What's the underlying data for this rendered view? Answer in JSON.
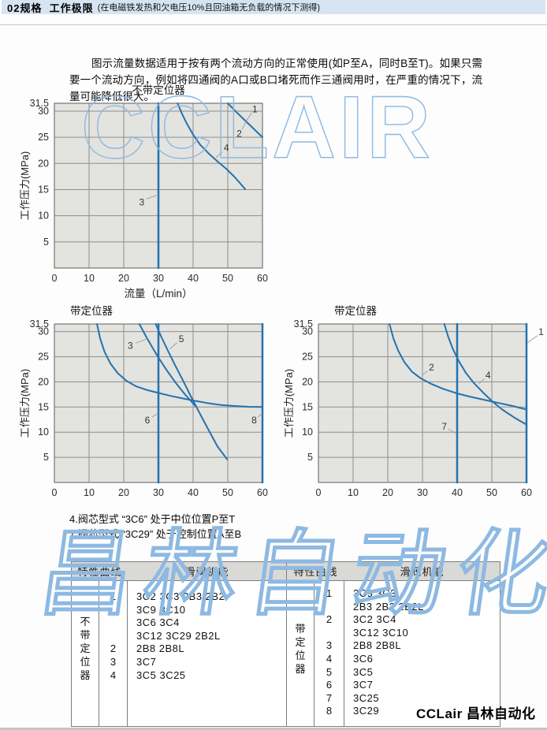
{
  "page": {
    "header": {
      "title": "02规格  工作极限",
      "subtitle": "(在电磁铁发热和欠电压10%且回油箱无负载的情况下测得)"
    },
    "intro": "图示流量数据适用于按有两个流动方向的正常使用(如P至A，同时B至T)。如果只需要一个流动方向，例如将四通阀的A口或B口堵死而作三通阀用时，在严重的情况下，流量可能降低很大。",
    "notes": [
      "4.阀芯型式 “3C6” 处于中位位置P至T",
      "7.阀芯型式 “3C29” 处于控制位置A至B"
    ],
    "watermark_top": "CCLAIR",
    "watermark_bottom": "昌林自动化",
    "brand": "CCLair 昌林自动化",
    "colors": {
      "curve": "#2472ae",
      "plot_bg": "#e3e3df",
      "grid": "#8e8e8e",
      "plot_border": "#767676",
      "watermark": "#8db9e2",
      "header_bar": "#d6e4f2",
      "table_header_bg": "#d9d9d6"
    }
  },
  "chart_data": [
    {
      "type": "line",
      "title": "不带定位器",
      "xlabel": "流量（L/min）",
      "ylabel": "工作压力(MPa)",
      "xlim": [
        0,
        60
      ],
      "ylim": [
        0,
        31.5
      ],
      "xticks": [
        0,
        10,
        20,
        30,
        40,
        50,
        60
      ],
      "yticks": [
        5,
        10,
        15,
        20,
        25,
        30,
        31.5
      ],
      "grid": true,
      "title_align": "center",
      "curves": [
        {
          "name": "curve-1-2",
          "points": [
            [
              50,
              31.5
            ],
            [
              52.5,
              29.8
            ],
            [
              55,
              28.2
            ],
            [
              57.5,
              26.6
            ],
            [
              60,
              25
            ]
          ]
        },
        {
          "name": "curve-4",
          "points": [
            [
              35.5,
              31.5
            ],
            [
              36.8,
              29.5
            ],
            [
              38.2,
              27.6
            ],
            [
              40,
              25.5
            ],
            [
              42,
              23.6
            ],
            [
              44.5,
              21.9
            ],
            [
              47,
              20.4
            ],
            [
              49.5,
              19.0
            ],
            [
              52,
              17.4
            ],
            [
              55,
              15.1
            ]
          ]
        },
        {
          "name": "curve-3",
          "points": [
            [
              30,
              0
            ],
            [
              30,
              31.5
            ]
          ]
        }
      ],
      "labels": [
        {
          "text": "1",
          "x": 57.8,
          "y": 30.4,
          "leader": [
            [
              56.9,
              29.7
            ],
            [
              55.3,
              28.1
            ]
          ]
        },
        {
          "text": "2",
          "x": 53.3,
          "y": 25.7,
          "leader": [
            [
              54.1,
              26.5
            ],
            [
              55.3,
              28.1
            ]
          ]
        },
        {
          "text": "4",
          "x": 49.6,
          "y": 23.0,
          "leader": [
            [
              48.4,
              22.2
            ],
            [
              46.6,
              21.1
            ]
          ]
        },
        {
          "text": "3",
          "x": 25.2,
          "y": 12.6,
          "leader": [
            [
              26.5,
              13.2
            ],
            [
              29.5,
              13.9
            ]
          ]
        }
      ]
    },
    {
      "type": "line",
      "title": "带定位器",
      "xlabel": "",
      "ylabel": "工作压力(MPa)",
      "xlim": [
        0,
        60
      ],
      "ylim": [
        0,
        31.5
      ],
      "xticks": [
        0,
        10,
        20,
        30,
        40,
        50,
        60
      ],
      "yticks": [
        5,
        10,
        15,
        20,
        25,
        30,
        31.5
      ],
      "grid": true,
      "title_align": "left",
      "curves": [
        {
          "name": "curve-limit",
          "points": [
            [
              12.3,
              31.5
            ],
            [
              13.2,
              28.6
            ],
            [
              14.5,
              25.9
            ],
            [
              16.2,
              23.6
            ],
            [
              18.3,
              21.7
            ],
            [
              20.8,
              20.2
            ],
            [
              23.6,
              19.1
            ],
            [
              26.6,
              18.4
            ],
            [
              30,
              17.8
            ],
            [
              33.5,
              17.2
            ],
            [
              37,
              16.7
            ],
            [
              40,
              16.3
            ],
            [
              44,
              15.8
            ],
            [
              48,
              15.4
            ],
            [
              52,
              15.2
            ],
            [
              56,
              15.05
            ],
            [
              60,
              15
            ]
          ]
        },
        {
          "name": "curve-3",
          "points": [
            [
              24.5,
              31.5
            ],
            [
              26.3,
              29.2
            ],
            [
              28.2,
              26.9
            ],
            [
              30.2,
              24.6
            ],
            [
              32.5,
              22.2
            ],
            [
              35,
              19.8
            ],
            [
              37.8,
              17.4
            ],
            [
              40.8,
              15.1
            ]
          ]
        },
        {
          "name": "curve-5",
          "points": [
            [
              29.2,
              31.5
            ],
            [
              30.8,
              29.0
            ],
            [
              32.6,
              26.4
            ],
            [
              34.6,
              23.6
            ],
            [
              36.9,
              20.5
            ],
            [
              39.3,
              17.2
            ],
            [
              41.8,
              13.9
            ],
            [
              44.4,
              10.5
            ],
            [
              47,
              7.2
            ],
            [
              49.8,
              4.6
            ]
          ]
        },
        {
          "name": "curve-6",
          "points": [
            [
              30,
              0
            ],
            [
              30,
              31.5
            ]
          ]
        },
        {
          "name": "curve-8",
          "points": [
            [
              60,
              0
            ],
            [
              60,
              31.5
            ]
          ]
        }
      ],
      "labels": [
        {
          "text": "3",
          "x": 21.9,
          "y": 27.2,
          "leader": [
            [
              23.4,
              27.7
            ],
            [
              26.9,
              28.6
            ]
          ]
        },
        {
          "text": "5",
          "x": 36.6,
          "y": 28.5,
          "leader": [
            [
              35.4,
              27.8
            ],
            [
              33.2,
              26.5
            ]
          ]
        },
        {
          "text": "6",
          "x": 26.8,
          "y": 12.4,
          "leader": [
            [
              28.1,
              13.0
            ],
            [
              29.6,
              13.6
            ]
          ]
        },
        {
          "text": "8",
          "x": 57.6,
          "y": 12.4,
          "leader": [
            [
              58.7,
              13.0
            ],
            [
              59.7,
              13.6
            ]
          ]
        }
      ]
    },
    {
      "type": "line",
      "title": "带定位器",
      "xlabel": "",
      "ylabel": "工作压力(MPa)",
      "xlim": [
        0,
        60
      ],
      "ylim": [
        0,
        31.5
      ],
      "xticks": [
        0,
        10,
        20,
        30,
        40,
        50,
        60
      ],
      "yticks": [
        5,
        10,
        15,
        20,
        25,
        30,
        31.5
      ],
      "grid": true,
      "title_align": "left",
      "curves": [
        {
          "name": "curve-2",
          "points": [
            [
              20.5,
              31.5
            ],
            [
              21.6,
              28.7
            ],
            [
              23,
              26.2
            ],
            [
              24.8,
              23.9
            ],
            [
              27,
              22.0
            ],
            [
              29.5,
              20.7
            ],
            [
              32.5,
              19.6
            ],
            [
              36,
              18.6
            ],
            [
              40,
              17.7
            ],
            [
              44,
              17.0
            ],
            [
              48,
              16.4
            ],
            [
              52,
              15.8
            ],
            [
              56,
              15.2
            ],
            [
              60,
              14.5
            ]
          ]
        },
        {
          "name": "curve-4",
          "points": [
            [
              36.3,
              31.5
            ],
            [
              37.4,
              29.0
            ],
            [
              38.8,
              26.5
            ],
            [
              40.5,
              24.1
            ],
            [
              42.5,
              21.8
            ],
            [
              44.8,
              19.8
            ],
            [
              47.3,
              18.0
            ],
            [
              50,
              16.2
            ],
            [
              53,
              14.5
            ],
            [
              56.5,
              12.9
            ],
            [
              60,
              11.5
            ]
          ]
        },
        {
          "name": "curve-7",
          "points": [
            [
              40,
              0
            ],
            [
              40,
              31.5
            ]
          ]
        },
        {
          "name": "curve-1",
          "points": [
            [
              60,
              0
            ],
            [
              60,
              31.5
            ]
          ]
        }
      ],
      "labels": [
        {
          "text": "2",
          "x": 32.6,
          "y": 22.9,
          "leader": [
            [
              31.5,
              22.2
            ],
            [
              29.8,
              21.3
            ]
          ]
        },
        {
          "text": "4",
          "x": 48.9,
          "y": 21.3,
          "leader": [
            [
              47.8,
              20.6
            ],
            [
              46.3,
              19.6
            ]
          ]
        },
        {
          "text": "7",
          "x": 36.3,
          "y": 11.1,
          "leader": [
            [
              37.5,
              10.6
            ],
            [
              39.6,
              9.8
            ]
          ]
        },
        {
          "text": "1",
          "x": 64.2,
          "y": 29.9,
          "leader": [
            [
              63.2,
              29.2
            ],
            [
              60.3,
              27.8
            ]
          ]
        }
      ]
    }
  ],
  "tables": [
    {
      "group": "不带定位器",
      "header_curve": "特性曲线",
      "header_spool": "滑阀机能",
      "rows": [
        {
          "num": "1",
          "codes": "3C2 3C3 2B3 2B2"
        },
        {
          "num": "",
          "codes": "3C9 3C10"
        },
        {
          "num": "",
          "codes": "3C6 3C4"
        },
        {
          "num": "",
          "codes": "3C12 3C29 2B2L"
        },
        {
          "num": "2",
          "codes": "2B8 2B8L"
        },
        {
          "num": "3",
          "codes": "3C7"
        },
        {
          "num": "4",
          "codes": "3C5 3C25"
        }
      ]
    },
    {
      "group": "带定位器",
      "header_curve": "特性曲线",
      "header_spool": "滑阀机能",
      "rows": [
        {
          "num": "1",
          "codes": "3C9 3C3"
        },
        {
          "num": "",
          "codes": "2B3 2B2 2B2L"
        },
        {
          "num": "2",
          "codes": "3C2 3C4"
        },
        {
          "num": "",
          "codes": "3C12 3C10"
        },
        {
          "num": "3",
          "codes": "2B8 2B8L"
        },
        {
          "num": "4",
          "codes": "3C6"
        },
        {
          "num": "5",
          "codes": "3C5"
        },
        {
          "num": "6",
          "codes": "3C7"
        },
        {
          "num": "7",
          "codes": "3C25"
        },
        {
          "num": "8",
          "codes": "3C29"
        }
      ]
    }
  ]
}
